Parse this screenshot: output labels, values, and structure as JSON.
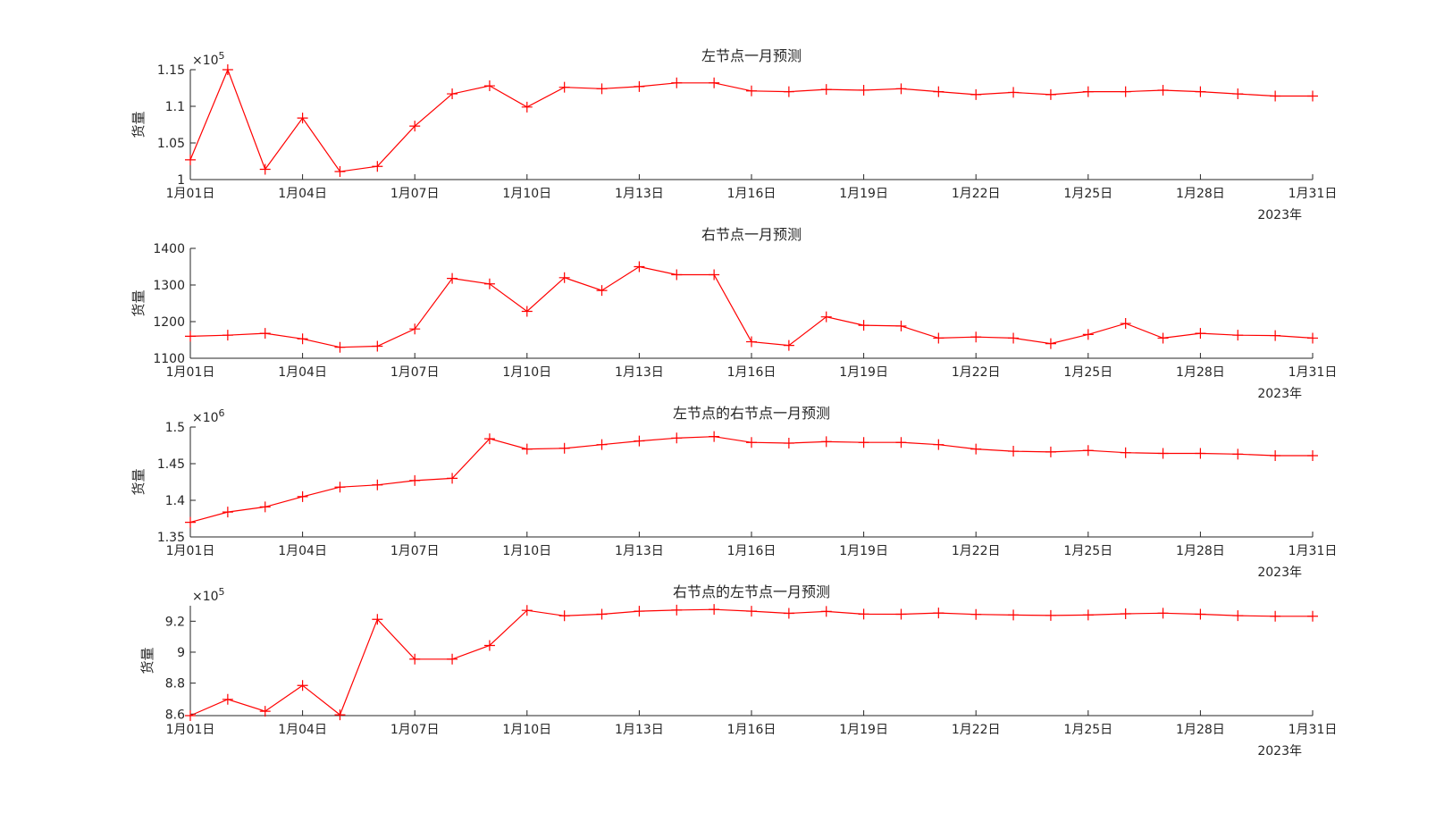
{
  "chart_data": [
    {
      "type": "line",
      "title": "左节点一月预测",
      "ylabel": "货量",
      "exponent_label": "×10",
      "exponent": "5",
      "xticks": [
        "1月01日",
        "1月04日",
        "1月07日",
        "1月10日",
        "1月13日",
        "1月16日",
        "1月19日",
        "1月22日",
        "1月25日",
        "1月28日",
        "1月31日"
      ],
      "xtick_days": [
        1,
        4,
        7,
        10,
        13,
        16,
        19,
        22,
        25,
        28,
        31
      ],
      "year_label": "2023年",
      "xlim": [
        1,
        31
      ],
      "ylim": [
        1.0,
        1.15
      ],
      "yticks": [
        "1",
        "1.05",
        "1.1",
        "1.15"
      ],
      "ytick_values": [
        1.0,
        1.05,
        1.1,
        1.15
      ],
      "series": [
        {
          "color": "#ff0000",
          "marker": "+",
          "x": [
            1,
            2,
            3,
            4,
            5,
            6,
            7,
            8,
            9,
            10,
            11,
            12,
            13,
            14,
            15,
            16,
            17,
            18,
            19,
            20,
            21,
            22,
            23,
            24,
            25,
            26,
            27,
            28,
            29,
            30,
            31
          ],
          "values": [
            1.027,
            1.15,
            1.014,
            1.084,
            1.011,
            1.018,
            1.073,
            1.117,
            1.128,
            1.099,
            1.126,
            1.124,
            1.127,
            1.132,
            1.132,
            1.121,
            1.12,
            1.123,
            1.122,
            1.124,
            1.12,
            1.116,
            1.119,
            1.116,
            1.12,
            1.12,
            1.122,
            1.12,
            1.117,
            1.114,
            1.114
          ]
        }
      ]
    },
    {
      "type": "line",
      "title": "右节点一月预测",
      "ylabel": "货量",
      "xticks": [
        "1月01日",
        "1月04日",
        "1月07日",
        "1月10日",
        "1月13日",
        "1月16日",
        "1月19日",
        "1月22日",
        "1月25日",
        "1月28日",
        "1月31日"
      ],
      "xtick_days": [
        1,
        4,
        7,
        10,
        13,
        16,
        19,
        22,
        25,
        28,
        31
      ],
      "year_label": "2023年",
      "xlim": [
        1,
        31
      ],
      "ylim": [
        1100,
        1400
      ],
      "yticks": [
        "1100",
        "1200",
        "1300",
        "1400"
      ],
      "ytick_values": [
        1100,
        1200,
        1300,
        1400
      ],
      "series": [
        {
          "color": "#ff0000",
          "marker": "+",
          "x": [
            1,
            2,
            3,
            4,
            5,
            6,
            7,
            8,
            9,
            10,
            11,
            12,
            13,
            14,
            15,
            16,
            17,
            18,
            19,
            20,
            21,
            22,
            23,
            24,
            25,
            26,
            27,
            28,
            29,
            30,
            31
          ],
          "values": [
            1160,
            1163,
            1168,
            1153,
            1130,
            1133,
            1180,
            1318,
            1303,
            1228,
            1320,
            1285,
            1350,
            1328,
            1328,
            1145,
            1135,
            1213,
            1190,
            1188,
            1155,
            1158,
            1155,
            1140,
            1165,
            1195,
            1155,
            1168,
            1163,
            1162,
            1155
          ]
        }
      ]
    },
    {
      "type": "line",
      "title": "左节点的右节点一月预测",
      "ylabel": "货量",
      "exponent_label": "×10",
      "exponent": "6",
      "xticks": [
        "1月01日",
        "1月04日",
        "1月07日",
        "1月10日",
        "1月13日",
        "1月16日",
        "1月19日",
        "1月22日",
        "1月25日",
        "1月28日",
        "1月31日"
      ],
      "xtick_days": [
        1,
        4,
        7,
        10,
        13,
        16,
        19,
        22,
        25,
        28,
        31
      ],
      "year_label": "2023年",
      "xlim": [
        1,
        31
      ],
      "ylim": [
        1.35,
        1.5
      ],
      "yticks": [
        "1.35",
        "1.4",
        "1.45",
        "1.5"
      ],
      "ytick_values": [
        1.35,
        1.4,
        1.45,
        1.5
      ],
      "series": [
        {
          "color": "#ff0000",
          "marker": "+",
          "x": [
            1,
            2,
            3,
            4,
            5,
            6,
            7,
            8,
            9,
            10,
            11,
            12,
            13,
            14,
            15,
            16,
            17,
            18,
            19,
            20,
            21,
            22,
            23,
            24,
            25,
            26,
            27,
            28,
            29,
            30,
            31
          ],
          "values": [
            1.37,
            1.384,
            1.391,
            1.405,
            1.418,
            1.421,
            1.427,
            1.43,
            1.484,
            1.47,
            1.471,
            1.476,
            1.481,
            1.485,
            1.487,
            1.479,
            1.478,
            1.48,
            1.479,
            1.479,
            1.476,
            1.47,
            1.467,
            1.466,
            1.468,
            1.465,
            1.464,
            1.464,
            1.463,
            1.461,
            1.461
          ]
        }
      ]
    },
    {
      "type": "line",
      "title": "右节点的左节点一月预测",
      "ylabel": "货量",
      "exponent_label": "×10",
      "exponent": "5",
      "xticks": [
        "1月01日",
        "1月04日",
        "1月07日",
        "1月10日",
        "1月13日",
        "1月16日",
        "1月19日",
        "1月22日",
        "1月25日",
        "1月28日",
        "1月31日"
      ],
      "xtick_days": [
        1,
        4,
        7,
        10,
        13,
        16,
        19,
        22,
        25,
        28,
        31
      ],
      "year_label": "2023年",
      "xlim": [
        1,
        31
      ],
      "ylim": [
        8.59,
        9.3
      ],
      "yticks": [
        "8.6",
        "8.8",
        "9",
        "9.2"
      ],
      "ytick_values": [
        8.6,
        8.8,
        9.0,
        9.2
      ],
      "series": [
        {
          "color": "#ff0000",
          "marker": "+",
          "x": [
            1,
            2,
            3,
            4,
            5,
            6,
            7,
            8,
            9,
            10,
            11,
            12,
            13,
            14,
            15,
            16,
            17,
            18,
            19,
            20,
            21,
            22,
            23,
            24,
            25,
            26,
            27,
            28,
            29,
            30,
            31
          ],
          "values": [
            8.59,
            8.695,
            8.618,
            8.785,
            8.595,
            9.212,
            8.955,
            8.955,
            9.043,
            9.27,
            9.235,
            9.245,
            9.265,
            9.272,
            9.276,
            9.265,
            9.251,
            9.263,
            9.246,
            9.245,
            9.253,
            9.244,
            9.24,
            9.237,
            9.24,
            9.248,
            9.252,
            9.245,
            9.236,
            9.232,
            9.232
          ]
        }
      ]
    }
  ]
}
